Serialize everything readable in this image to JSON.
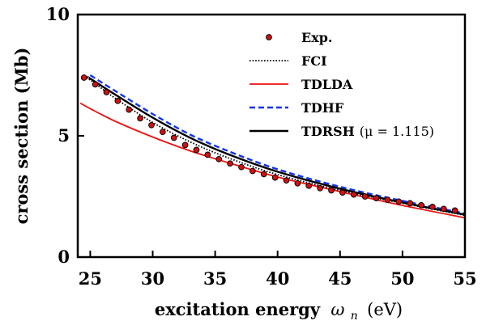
{
  "chart_data": {
    "type": "line",
    "xlabel": "excitation energy",
    "xlabel_symbol": "ω",
    "xlabel_subscript": "n",
    "xlabel_unit": "(eV)",
    "ylabel": "cross section (Mb)",
    "xlim": [
      24,
      55
    ],
    "ylim": [
      0,
      10
    ],
    "x_ticks": [
      25,
      30,
      35,
      40,
      45,
      50,
      55
    ],
    "x_tick_labels": [
      "25",
      "30",
      "35",
      "40",
      "45",
      "50",
      "55"
    ],
    "y_ticks": [
      0,
      5,
      10
    ],
    "y_tick_labels": [
      "0",
      "5",
      "10"
    ],
    "grid": false,
    "legend_position": "top-right",
    "series": [
      {
        "name": "Exp.",
        "style": "markers",
        "color": "#cc1111",
        "x": [
          24.5,
          25.4,
          26.3,
          27.2,
          28.1,
          29.0,
          29.9,
          30.8,
          31.7,
          32.6,
          33.5,
          34.4,
          35.3,
          36.2,
          37.1,
          38.0,
          38.9,
          39.8,
          40.7,
          41.6,
          42.5,
          43.4,
          44.3,
          45.2,
          46.1,
          47.0,
          47.9,
          48.8,
          49.7,
          50.6,
          51.5,
          52.4,
          53.3,
          54.2
        ],
        "y": [
          7.4,
          7.12,
          6.8,
          6.44,
          6.08,
          5.72,
          5.44,
          5.16,
          4.92,
          4.62,
          4.42,
          4.22,
          4.04,
          3.86,
          3.71,
          3.55,
          3.42,
          3.28,
          3.16,
          3.04,
          2.94,
          2.84,
          2.75,
          2.66,
          2.58,
          2.5,
          2.43,
          2.36,
          2.29,
          2.22,
          2.14,
          2.07,
          1.99,
          1.92
        ]
      },
      {
        "name": "FCI",
        "style": "dotted",
        "color": "#000000",
        "x": [
          24.7,
          25,
          27,
          30,
          33,
          36,
          40,
          45,
          50,
          55
        ],
        "y": [
          7.38,
          7.3,
          6.55,
          5.55,
          4.75,
          4.1,
          3.4,
          2.75,
          2.22,
          1.72
        ]
      },
      {
        "name": "TDLDA",
        "style": "solid",
        "color": "#ee1111",
        "x": [
          24.2,
          25,
          27,
          30,
          33,
          36,
          40,
          45,
          50,
          55
        ],
        "y": [
          6.35,
          6.12,
          5.6,
          4.95,
          4.38,
          3.9,
          3.3,
          2.7,
          2.13,
          1.62
        ]
      },
      {
        "name": "TDHF",
        "style": "dashed",
        "color": "#1133ee",
        "x": [
          25.0,
          27,
          30,
          33,
          36,
          40,
          45,
          50,
          55
        ],
        "y": [
          7.5,
          6.85,
          5.9,
          5.05,
          4.38,
          3.62,
          2.9,
          2.32,
          1.8
        ]
      },
      {
        "name": "TDRSH",
        "name_suffix": "(μ = 1.115)",
        "style": "solid",
        "color": "#000000",
        "x": [
          24.9,
          25,
          27,
          30,
          33,
          36,
          40,
          45,
          50,
          55
        ],
        "y": [
          7.4,
          7.36,
          6.7,
          5.75,
          4.92,
          4.25,
          3.52,
          2.82,
          2.25,
          1.75
        ]
      }
    ]
  }
}
